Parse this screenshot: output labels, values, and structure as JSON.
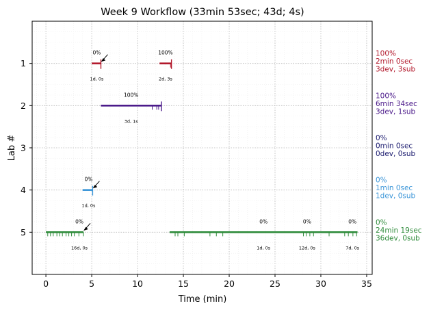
{
  "chart_data": {
    "type": "timeline",
    "title": "Week 9 Workflow (33min 53sec; 43d; 4s)",
    "xlabel": "Time (min)",
    "ylabel": "Lab #",
    "xlim": [
      -1.5,
      35.6
    ],
    "ylim": [
      6,
      0
    ],
    "xticks": [
      "0",
      "5",
      "10",
      "15",
      "20",
      "25",
      "30",
      "35"
    ],
    "yticks": [
      "1",
      "2",
      "3",
      "4",
      "5"
    ],
    "grid": true,
    "labs": [
      {
        "lab": 1,
        "color": "#b2182b",
        "summary": [
          "100%",
          "2min 0sec",
          "3dev, 3sub"
        ],
        "segments": [
          {
            "start": 5.0,
            "end": 6.0,
            "pct": "0%",
            "info": "1d, 0s",
            "arrow": true
          },
          {
            "start": 12.4,
            "end": 13.7,
            "pct": "100%",
            "info": "2d, 3s",
            "arrow": false
          }
        ],
        "ticks": [
          13.6
        ],
        "end_marks": [
          6.0,
          13.7
        ]
      },
      {
        "lab": 2,
        "color": "#4b1a8a",
        "summary": [
          "100%",
          "6min 34sec",
          "3dev, 1sub"
        ],
        "segments": [
          {
            "start": 6.0,
            "end": 12.6,
            "pct": "100%",
            "info": "3d, 1s",
            "arrow": false
          }
        ],
        "ticks": [
          11.6,
          12.1,
          12.3
        ],
        "end_marks": [
          12.6
        ]
      },
      {
        "lab": 3,
        "color": "#1a1a6e",
        "summary": [
          "0%",
          "0min 0sec",
          "0dev, 0sub"
        ],
        "segments": [],
        "ticks": [],
        "end_marks": []
      },
      {
        "lab": 4,
        "color": "#3a95d8",
        "summary": [
          "0%",
          "1min 0sec",
          "1dev, 0sub"
        ],
        "segments": [
          {
            "start": 4.0,
            "end": 5.1,
            "pct": "0%",
            "info": "1d, 0s",
            "arrow": true
          }
        ],
        "ticks": [],
        "end_marks": [
          5.1
        ]
      },
      {
        "lab": 5,
        "color": "#2e8b3a",
        "summary": [
          "0%",
          "24min 19sec",
          "36dev, 0sub"
        ],
        "segments": [
          {
            "start": 0.0,
            "end": 4.1,
            "pct": "0%",
            "info": "16d, 0s",
            "arrow": true
          },
          {
            "start": 13.5,
            "end": 34.0,
            "pct": "0%",
            "info": "1d, 0s",
            "arrow": false
          },
          {
            "start": 28.0,
            "end": 29.0,
            "pct": "0%",
            "info": "12d, 0s",
            "arrow": false,
            "label_only": true
          },
          {
            "start": 32.9,
            "end": 34.0,
            "pct": "0%",
            "info": "7d, 0s",
            "arrow": false,
            "label_only": true
          }
        ],
        "ticks": [
          0.2,
          0.5,
          0.8,
          1.2,
          1.5,
          1.8,
          2.2,
          2.5,
          2.8,
          3.1,
          3.6,
          4.1,
          14.1,
          14.4,
          15.1,
          17.9,
          18.6,
          19.3,
          28.1,
          28.4,
          28.8,
          29.2,
          30.9,
          32.6,
          33.0,
          33.5,
          33.9
        ],
        "end_marks": []
      }
    ]
  }
}
